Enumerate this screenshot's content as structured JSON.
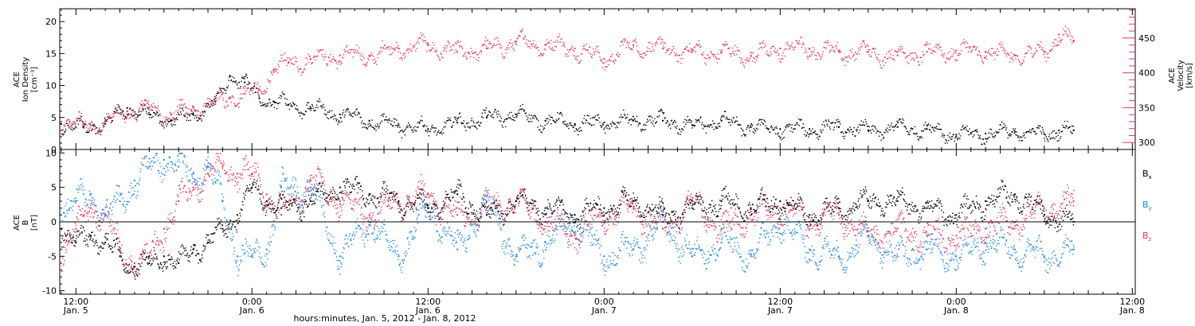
{
  "colors": {
    "density": "#000000",
    "velocity": "#e8335e",
    "bx": "#000000",
    "by": "#1f88e0",
    "bz": "#e8335e"
  },
  "xaxis": {
    "title": "hours:minutes, Jan. 5, 2012 - Jan. 8, 2012",
    "range_hours": [
      10.9,
      84.2
    ],
    "ticks": [
      {
        "hour": 12,
        "time": "12:00",
        "date": "Jan. 5"
      },
      {
        "hour": 24,
        "time": "0:00",
        "date": "Jan. 6"
      },
      {
        "hour": 36,
        "time": "12:00",
        "date": "Jan. 6"
      },
      {
        "hour": 48,
        "time": "0:00",
        "date": "Jan. 7"
      },
      {
        "hour": 60,
        "time": "12:00",
        "date": "Jan. 7"
      },
      {
        "hour": 72,
        "time": "0:00",
        "date": "Jan. 8"
      },
      {
        "hour": 84,
        "time": "12:00",
        "date": "Jan. 8"
      }
    ]
  },
  "top_panel": {
    "left_title_lines": [
      "ACE",
      "Ion Density",
      "[cm⁻³]"
    ],
    "right_title_lines": [
      "ACE",
      "Velocity",
      "[km/s]"
    ],
    "left_ticks": [
      "0",
      "5",
      "10",
      "15",
      "20"
    ],
    "right_ticks": [
      "300",
      "350",
      "400",
      "450"
    ]
  },
  "bottom_panel": {
    "left_title_lines": [
      "ACE",
      "B",
      "[nT]"
    ],
    "ticks": [
      "-10",
      "-5",
      "0",
      "5",
      "10"
    ],
    "legend": [
      {
        "base": "B",
        "sub": "x"
      },
      {
        "base": "B",
        "sub": "y"
      },
      {
        "base": "B",
        "sub": "z"
      }
    ]
  },
  "chart_data": [
    {
      "type": "scatter",
      "title": "",
      "xlabel": "hours:minutes, Jan. 5, 2012 - Jan. 8, 2012",
      "ylabel": "ACE Ion Density [cm⁻³]",
      "ylim": [
        0,
        22
      ],
      "y2label": "ACE Velocity [km/s]",
      "y2lim": [
        290,
        492
      ],
      "x_unit": "hours since 2012-01-05 00:00",
      "series": [
        {
          "name": "Ion Density",
          "axis": "left",
          "x": [
            11.0,
            12.5,
            14.0,
            15.5,
            17.0,
            18.5,
            20.0,
            21.5,
            22.5,
            23.5,
            24.5,
            25.5,
            26.5,
            28,
            30,
            32,
            34,
            36,
            38,
            40,
            42,
            44,
            46,
            48,
            50,
            52,
            54,
            56,
            58,
            60,
            62,
            64,
            66,
            68,
            70,
            72,
            74,
            76,
            78,
            79,
            80
          ],
          "y": [
            4.0,
            3.5,
            4.0,
            6.5,
            5.5,
            4.5,
            5.5,
            7.5,
            11.5,
            10.5,
            8.0,
            7.5,
            7.0,
            6.5,
            5.5,
            4.5,
            3.8,
            3.2,
            4.2,
            5.0,
            5.5,
            4.5,
            4.0,
            4.2,
            4.5,
            4.5,
            3.8,
            4.5,
            3.5,
            3.2,
            3.2,
            3.5,
            3.0,
            3.5,
            3.2,
            2.3,
            2.5,
            2.8,
            2.4,
            3.0,
            3.0
          ]
        },
        {
          "name": "Velocity",
          "axis": "right",
          "x": [
            11.0,
            12.5,
            14.0,
            15.5,
            17.0,
            18.5,
            20.0,
            21.5,
            22.5,
            23.5,
            24.5,
            25.5,
            26.5,
            28,
            30,
            32,
            34,
            36,
            38,
            40,
            42,
            44,
            46,
            48,
            50,
            52,
            54,
            56,
            58,
            60,
            62,
            64,
            66,
            68,
            70,
            72,
            74,
            76,
            78,
            79,
            80
          ],
          "y": [
            330,
            325,
            330,
            345,
            350,
            340,
            350,
            355,
            365,
            370,
            375,
            405,
            415,
            420,
            425,
            425,
            435,
            440,
            430,
            435,
            445,
            440,
            435,
            420,
            440,
            435,
            430,
            430,
            425,
            435,
            435,
            430,
            430,
            425,
            430,
            432,
            430,
            425,
            430,
            455,
            445
          ]
        }
      ]
    },
    {
      "type": "scatter",
      "title": "",
      "xlabel": "hours:minutes, Jan. 5, 2012 - Jan. 8, 2012",
      "ylabel": "ACE B [nT]",
      "ylim": [
        -10.5,
        10.5
      ],
      "x_unit": "hours since 2012-01-05 00:00",
      "series": [
        {
          "name": "Bx",
          "x": [
            11,
            12,
            13,
            14,
            15,
            16,
            17,
            18,
            19,
            20,
            21,
            22,
            23,
            24,
            25,
            26,
            28,
            30,
            32,
            34,
            36,
            38,
            40,
            42,
            44,
            46,
            48,
            50,
            52,
            54,
            56,
            58,
            60,
            62,
            64,
            66,
            68,
            70,
            72,
            74,
            76,
            78,
            80
          ],
          "y": [
            -1,
            -3,
            -2,
            -3,
            -5,
            -6.5,
            -6,
            -5,
            -6,
            -4,
            -3,
            -1,
            1,
            5,
            3,
            2,
            3,
            5,
            4,
            3,
            2,
            4,
            1,
            3,
            2,
            1,
            2,
            3,
            1,
            2,
            3,
            2,
            3,
            1,
            2,
            3,
            3,
            2,
            1,
            3,
            4,
            1,
            0
          ]
        },
        {
          "name": "By",
          "x": [
            11,
            12,
            13,
            14,
            15,
            16,
            17,
            18,
            19,
            20,
            21,
            22,
            23,
            24,
            25,
            26,
            28,
            30,
            32,
            34,
            36,
            38,
            40,
            42,
            44,
            46,
            48,
            50,
            52,
            54,
            56,
            58,
            60,
            62,
            64,
            66,
            68,
            70,
            72,
            74,
            76,
            78,
            80
          ],
          "y": [
            2,
            3,
            4,
            1,
            3,
            6,
            8,
            9,
            8,
            7,
            8,
            3,
            -5,
            -5,
            -4,
            5,
            5,
            -5,
            0,
            -5,
            2,
            -4,
            3,
            -5,
            -3,
            0,
            -5,
            -4,
            0,
            -5,
            -3,
            -5,
            0,
            -4,
            -5,
            -2,
            -5,
            -4,
            -5,
            -3,
            -4,
            -5,
            -4
          ]
        },
        {
          "name": "Bz",
          "x": [
            11,
            12,
            13,
            14,
            15,
            16,
            17,
            18,
            19,
            20,
            21,
            22,
            23,
            24,
            25,
            26,
            28,
            30,
            32,
            34,
            36,
            38,
            40,
            42,
            44,
            46,
            48,
            50,
            52,
            54,
            56,
            58,
            60,
            62,
            64,
            66,
            68,
            70,
            72,
            74,
            76,
            78,
            80
          ],
          "y": [
            -4,
            -1,
            2,
            1,
            -4,
            -6,
            -5,
            -1,
            3,
            5,
            7,
            8,
            7,
            7,
            4,
            1,
            6,
            3,
            1,
            3,
            4,
            1,
            2,
            3,
            0,
            -2,
            1,
            2,
            -1,
            3,
            -1,
            1,
            2,
            0,
            1,
            -2,
            -1,
            -2,
            -2,
            -1,
            0,
            2,
            3
          ]
        }
      ]
    }
  ]
}
